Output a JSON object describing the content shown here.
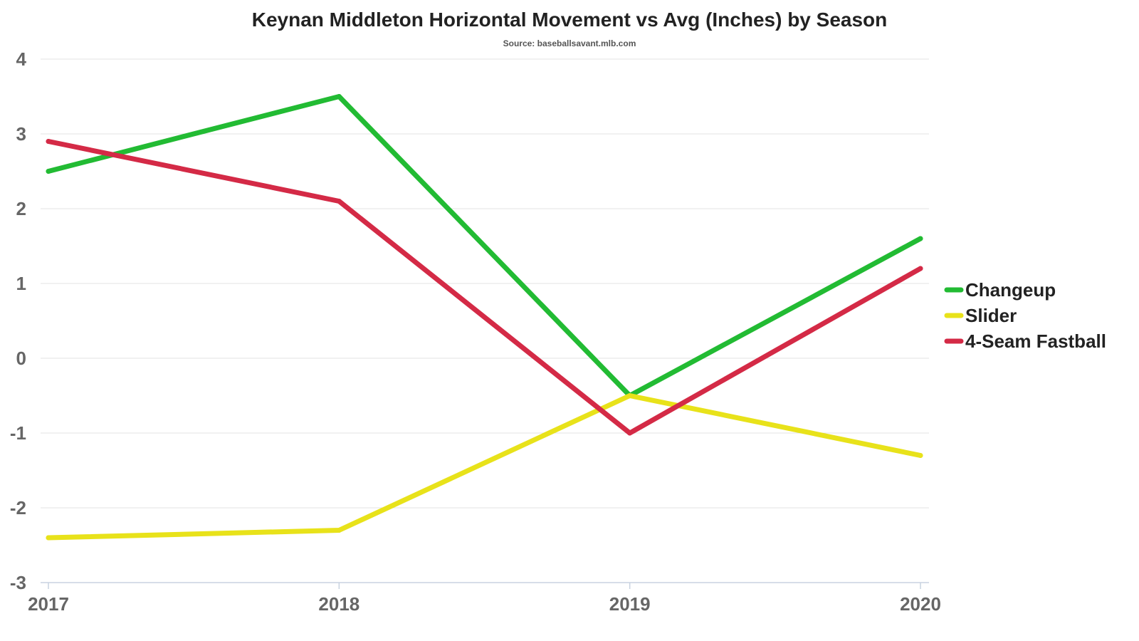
{
  "chart_data": {
    "type": "line",
    "title": "Keynan Middleton Horizontal Movement vs Avg (Inches) by Season",
    "subtitle": "Source: baseballsavant.mlb.com",
    "xlabel": "",
    "ylabel": "",
    "categories": [
      "2017",
      "2018",
      "2019",
      "2020"
    ],
    "ylim": [
      -3,
      4
    ],
    "yticks": [
      4,
      3,
      2,
      1,
      0,
      -1,
      -2,
      -3
    ],
    "grid": true,
    "legend_position": "right",
    "series": [
      {
        "name": "Changeup",
        "color": "#22bb33",
        "values": [
          2.5,
          3.5,
          -0.5,
          1.6
        ]
      },
      {
        "name": "Slider",
        "color": "#e8e21a",
        "values": [
          -2.4,
          -2.3,
          -0.5,
          -1.3
        ]
      },
      {
        "name": "4-Seam Fastball",
        "color": "#d42a46",
        "values": [
          2.9,
          2.1,
          -1.0,
          1.2
        ]
      }
    ]
  }
}
